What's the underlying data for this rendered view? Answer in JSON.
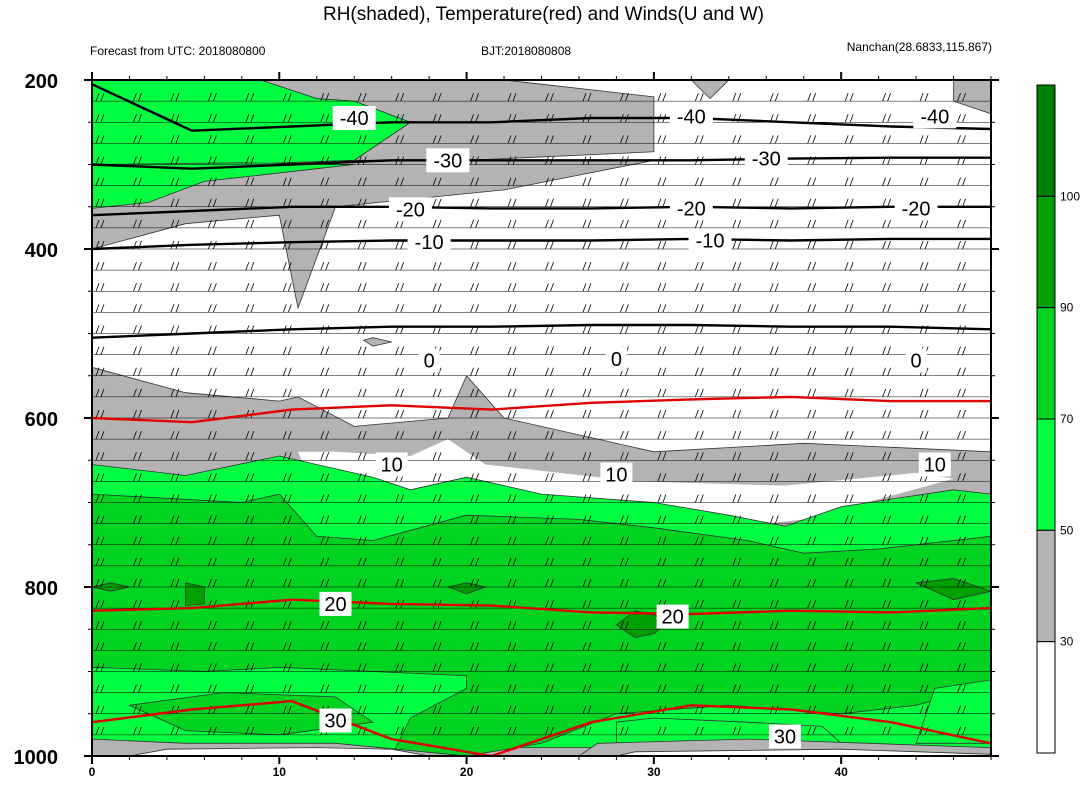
{
  "header": {
    "title": "RH(shaded), Temperature(red) and Winds(U and W)",
    "left": "Forecast from UTC: 2018080800",
    "center": "BJT:2018080808",
    "right": "Nanchan(28.6833,115.867)"
  },
  "chart_data": {
    "type": "contour",
    "x_ticks": [
      0,
      10,
      20,
      30,
      40
    ],
    "xlim": [
      0,
      48
    ],
    "y_ticks": [
      200,
      400,
      600,
      800,
      1000
    ],
    "ylim": [
      1000,
      200
    ],
    "y_reversed": true,
    "colorbar": {
      "labels": [
        "30",
        "50",
        "70",
        "90",
        "100"
      ],
      "levels": [
        30,
        50,
        70,
        90,
        100
      ],
      "colors": [
        "#ffffff",
        "#b3b3b3",
        "#00ff40",
        "#00d420",
        "#00a000",
        "#008000"
      ]
    },
    "temperature_contours": [
      {
        "value": -40,
        "label": "-40",
        "color": "#000000",
        "y": [
          205,
          260,
          255,
          250,
          250,
          245,
          245,
          250,
          255,
          258
        ]
      },
      {
        "value": -30,
        "label": "-30",
        "color": "#000000",
        "y": [
          300,
          305,
          300,
          295,
          295,
          295,
          295,
          293,
          292,
          292
        ]
      },
      {
        "value": -20,
        "label": "-20",
        "color": "#000000",
        "y": [
          360,
          355,
          350,
          350,
          352,
          352,
          350,
          352,
          350,
          350
        ]
      },
      {
        "value": -10,
        "label": "-10",
        "color": "#000000",
        "y": [
          400,
          395,
          392,
          390,
          390,
          390,
          388,
          390,
          388,
          388
        ]
      },
      {
        "value": 0,
        "label": "0",
        "color": "#000000",
        "y": [
          505,
          500,
          495,
          492,
          492,
          490,
          490,
          492,
          492,
          495
        ]
      },
      {
        "value": 10,
        "label": "10",
        "color": "#e00000",
        "y": [
          600,
          605,
          590,
          585,
          590,
          582,
          578,
          575,
          580,
          580
        ]
      },
      {
        "value": 20,
        "label": "20",
        "color": "#e00000",
        "y": [
          828,
          825,
          815,
          820,
          822,
          830,
          832,
          828,
          830,
          825
        ]
      },
      {
        "value": 30,
        "label": "30",
        "color": "#e00000",
        "y": [
          960,
          945,
          935,
          980,
          1000,
          960,
          940,
          945,
          960,
          985
        ]
      }
    ],
    "labeled_values": [
      {
        "text": "-40",
        "x": 14,
        "p": 245
      },
      {
        "text": "-40",
        "x": 32,
        "p": 243
      },
      {
        "text": "-40",
        "x": 45,
        "p": 243
      },
      {
        "text": "-30",
        "x": 19,
        "p": 295
      },
      {
        "text": "-30",
        "x": 36,
        "p": 293
      },
      {
        "text": "-20",
        "x": 17,
        "p": 353
      },
      {
        "text": "-20",
        "x": 32,
        "p": 352
      },
      {
        "text": "-20",
        "x": 44,
        "p": 352
      },
      {
        "text": "-10",
        "x": 18,
        "p": 392
      },
      {
        "text": "-10",
        "x": 33,
        "p": 390
      },
      {
        "text": "0",
        "x": 18,
        "p": 532
      },
      {
        "text": "0",
        "x": 28,
        "p": 530
      },
      {
        "text": "0",
        "x": 44,
        "p": 532
      },
      {
        "text": "10",
        "x": 16,
        "p": 655
      },
      {
        "text": "10",
        "x": 28,
        "p": 667
      },
      {
        "text": "10",
        "x": 45,
        "p": 655
      },
      {
        "text": "20",
        "x": 13,
        "p": 820
      },
      {
        "text": "20",
        "x": 31,
        "p": 835
      },
      {
        "text": "30",
        "x": 13,
        "p": 958
      },
      {
        "text": "30",
        "x": 37,
        "p": 977
      }
    ],
    "wind_barb_levels": [
      225,
      250,
      275,
      300,
      325,
      350,
      375,
      400,
      425,
      450,
      475,
      500,
      525,
      550,
      575,
      600,
      625,
      650,
      675,
      700,
      725,
      750,
      775,
      800,
      825,
      850,
      875,
      900,
      925,
      950,
      975
    ],
    "wind_barb_x_step": 2
  }
}
